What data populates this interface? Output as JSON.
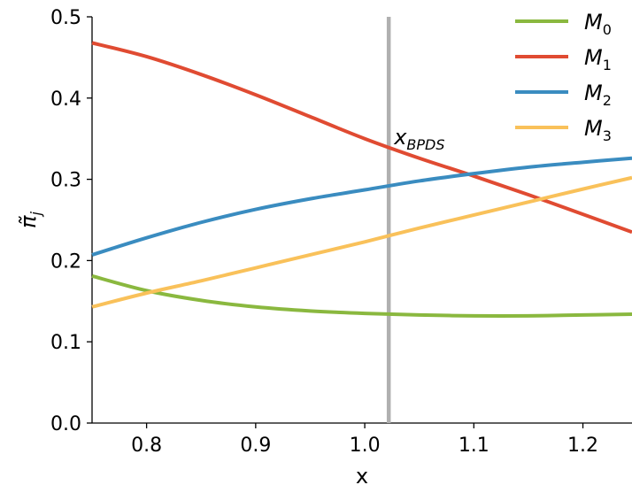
{
  "chart_data": {
    "type": "line",
    "xlabel": "x",
    "ylabel": "π̃",
    "ylabel_subscript": "j",
    "xlim": [
      0.75,
      1.245
    ],
    "ylim": [
      0.0,
      0.5
    ],
    "x_ticks": [
      "0.8",
      "0.9",
      "1.0",
      "1.1",
      "1.2"
    ],
    "x_tick_values": [
      0.8,
      0.9,
      1.0,
      1.1,
      1.2
    ],
    "y_ticks": [
      "0.0",
      "0.1",
      "0.2",
      "0.3",
      "0.4",
      "0.5"
    ],
    "y_tick_values": [
      0.0,
      0.1,
      0.2,
      0.3,
      0.4,
      0.5
    ],
    "grid": false,
    "legend_placement": "top-right",
    "x": [
      0.75,
      0.8,
      0.85,
      0.9,
      0.95,
      1.0,
      1.05,
      1.1,
      1.15,
      1.2,
      1.245
    ],
    "series": [
      {
        "name": "M",
        "subscript": "0",
        "color": "#8ab83f",
        "values": [
          0.181,
          0.163,
          0.151,
          0.143,
          0.138,
          0.135,
          0.133,
          0.132,
          0.132,
          0.133,
          0.134
        ]
      },
      {
        "name": "M",
        "subscript": "1",
        "color": "#e04b32",
        "values": [
          0.468,
          0.451,
          0.429,
          0.404,
          0.377,
          0.35,
          0.326,
          0.304,
          0.281,
          0.257,
          0.235
        ]
      },
      {
        "name": "M",
        "subscript": "2",
        "color": "#3a8cc0",
        "values": [
          0.207,
          0.228,
          0.247,
          0.263,
          0.276,
          0.287,
          0.298,
          0.307,
          0.315,
          0.321,
          0.326
        ]
      },
      {
        "name": "M",
        "subscript": "3",
        "color": "#f9c15a",
        "values": [
          0.143,
          0.16,
          0.175,
          0.191,
          0.207,
          0.223,
          0.24,
          0.256,
          0.272,
          0.288,
          0.302
        ]
      }
    ],
    "vline": {
      "x": 1.022,
      "color": "#b0b0b0",
      "label": "x",
      "label_subscript": "BPDS"
    }
  }
}
